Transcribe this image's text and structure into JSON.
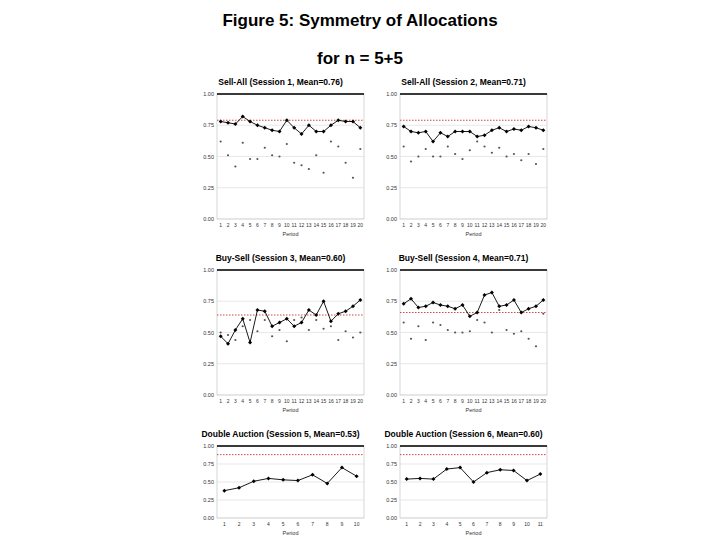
{
  "page": {
    "title": "Figure 5: Symmetry of Allocations",
    "subtitle": "for n = 5+5"
  },
  "chart_data": [
    {
      "type": "line",
      "title": "Sell-All (Session 1, Mean=0.76)",
      "x_label": "Period",
      "categories": [
        "1",
        "2",
        "3",
        "4",
        "5",
        "6",
        "7",
        "8",
        "9",
        "10",
        "11",
        "12",
        "13",
        "14",
        "15",
        "16",
        "17",
        "18",
        "19",
        "20"
      ],
      "ylim": [
        0,
        1
      ],
      "yticks": [
        {
          "value": 0,
          "label": "0.00"
        },
        {
          "value": 0.25,
          "label": "0.25"
        },
        {
          "value": 0.5,
          "label": "0.50"
        },
        {
          "value": 0.75,
          "label": "0.75"
        },
        {
          "value": 1,
          "label": "1.00"
        }
      ],
      "grid": true,
      "hlines": [
        {
          "value": 1,
          "color": "#000000",
          "line_style": "solid"
        },
        {
          "value": 0.79,
          "color": "#cc3333",
          "line_style": "dotted"
        }
      ],
      "series": [
        {
          "color": "#000000",
          "marker": "diamond",
          "line_style": "solid",
          "values": [
            0.78,
            0.77,
            0.76,
            0.82,
            0.78,
            0.75,
            0.73,
            0.71,
            0.7,
            0.79,
            0.73,
            0.68,
            0.75,
            0.7,
            0.7,
            0.75,
            0.79,
            0.78,
            0.78,
            0.73
          ]
        },
        {
          "color": "#555555",
          "marker": "circle",
          "line_style": "none",
          "values": [
            0.62,
            0.51,
            0.42,
            0.61,
            0.48,
            0.48,
            0.57,
            0.51,
            0.5,
            0.6,
            0.45,
            0.43,
            0.4,
            0.51,
            0.37,
            0.62,
            0.58,
            0.45,
            0.33,
            0.56
          ]
        }
      ]
    },
    {
      "type": "line",
      "title": "Sell-All (Session 2, Mean=0.71)",
      "x_label": "Period",
      "categories": [
        "1",
        "2",
        "3",
        "4",
        "5",
        "6",
        "7",
        "8",
        "9",
        "10",
        "11",
        "12",
        "13",
        "14",
        "15",
        "16",
        "17",
        "18",
        "19",
        "20"
      ],
      "ylim": [
        0,
        1
      ],
      "yticks": [
        {
          "value": 0,
          "label": "0.00"
        },
        {
          "value": 0.25,
          "label": "0.25"
        },
        {
          "value": 0.5,
          "label": "0.50"
        },
        {
          "value": 0.75,
          "label": "0.75"
        },
        {
          "value": 1,
          "label": "1.00"
        }
      ],
      "grid": true,
      "hlines": [
        {
          "value": 1,
          "color": "#000000",
          "line_style": "solid"
        },
        {
          "value": 0.79,
          "color": "#cc3333",
          "line_style": "dotted"
        }
      ],
      "series": [
        {
          "color": "#000000",
          "marker": "diamond",
          "line_style": "solid",
          "values": [
            0.74,
            0.7,
            0.69,
            0.7,
            0.62,
            0.69,
            0.66,
            0.7,
            0.7,
            0.7,
            0.66,
            0.67,
            0.71,
            0.73,
            0.7,
            0.72,
            0.71,
            0.74,
            0.73,
            0.71
          ]
        },
        {
          "color": "#555555",
          "marker": "circle",
          "line_style": "none",
          "values": [
            0.58,
            0.46,
            0.5,
            0.56,
            0.5,
            0.5,
            0.58,
            0.52,
            0.48,
            0.55,
            0.62,
            0.58,
            0.53,
            0.57,
            0.5,
            0.52,
            0.47,
            0.52,
            0.44,
            0.56
          ]
        }
      ]
    },
    {
      "type": "line",
      "title": "Buy-Sell (Session 3, Mean=0.60)",
      "x_label": "Period",
      "categories": [
        "1",
        "2",
        "3",
        "4",
        "5",
        "6",
        "7",
        "8",
        "9",
        "10",
        "11",
        "12",
        "13",
        "14",
        "15",
        "16",
        "17",
        "18",
        "19",
        "20"
      ],
      "ylim": [
        0,
        1
      ],
      "yticks": [
        {
          "value": 0,
          "label": "0.00"
        },
        {
          "value": 0.25,
          "label": "0.25"
        },
        {
          "value": 0.5,
          "label": "0.50"
        },
        {
          "value": 0.75,
          "label": "0.75"
        },
        {
          "value": 1,
          "label": "1.00"
        }
      ],
      "grid": true,
      "hlines": [
        {
          "value": 1,
          "color": "#000000",
          "line_style": "solid"
        },
        {
          "value": 0.64,
          "color": "#cc3333",
          "line_style": "dotted"
        }
      ],
      "series": [
        {
          "color": "#000000",
          "marker": "diamond",
          "line_style": "solid",
          "values": [
            0.47,
            0.41,
            0.52,
            0.61,
            0.42,
            0.68,
            0.67,
            0.55,
            0.58,
            0.61,
            0.55,
            0.58,
            0.68,
            0.64,
            0.75,
            0.59,
            0.65,
            0.67,
            0.71,
            0.76
          ]
        },
        {
          "color": "#555555",
          "marker": "circle",
          "line_style": "none",
          "values": [
            0.5,
            0.48,
            0.44,
            0.55,
            0.6,
            0.51,
            0.6,
            0.47,
            0.52,
            0.43,
            0.6,
            0.62,
            0.52,
            0.6,
            0.53,
            0.55,
            0.44,
            0.51,
            0.46,
            0.5
          ]
        }
      ]
    },
    {
      "type": "line",
      "title": "Buy-Sell (Session 4, Mean=0.71)",
      "x_label": "Period",
      "categories": [
        "1",
        "2",
        "3",
        "4",
        "5",
        "6",
        "7",
        "8",
        "9",
        "10",
        "11",
        "12",
        "13",
        "14",
        "15",
        "16",
        "17",
        "18",
        "19",
        "20"
      ],
      "ylim": [
        0,
        1
      ],
      "yticks": [
        {
          "value": 0,
          "label": "0.00"
        },
        {
          "value": 0.25,
          "label": "0.25"
        },
        {
          "value": 0.5,
          "label": "0.50"
        },
        {
          "value": 0.75,
          "label": "0.75"
        },
        {
          "value": 1,
          "label": "1.00"
        }
      ],
      "grid": true,
      "hlines": [
        {
          "value": 1,
          "color": "#000000",
          "line_style": "solid"
        },
        {
          "value": 0.66,
          "color": "#cc3333",
          "line_style": "dotted"
        }
      ],
      "series": [
        {
          "color": "#000000",
          "marker": "diamond",
          "line_style": "solid",
          "values": [
            0.73,
            0.77,
            0.7,
            0.71,
            0.74,
            0.72,
            0.71,
            0.69,
            0.72,
            0.63,
            0.66,
            0.8,
            0.82,
            0.71,
            0.72,
            0.76,
            0.66,
            0.69,
            0.71,
            0.76
          ]
        },
        {
          "color": "#555555",
          "marker": "circle",
          "line_style": "none",
          "values": [
            0.58,
            0.45,
            0.55,
            0.44,
            0.58,
            0.56,
            0.52,
            0.5,
            0.5,
            0.51,
            0.6,
            0.58,
            0.5,
            0.68,
            0.52,
            0.49,
            0.51,
            0.45,
            0.39,
            0.65
          ]
        }
      ]
    },
    {
      "type": "line",
      "title": "Double Auction (Session 5, Mean=0.53)",
      "x_label": "Period",
      "categories": [
        "1",
        "2",
        "3",
        "4",
        "5",
        "6",
        "7",
        "8",
        "9",
        "10"
      ],
      "ylim": [
        0,
        1
      ],
      "yticks": [
        {
          "value": 0,
          "label": "0.00"
        },
        {
          "value": 0.25,
          "label": "0.25"
        },
        {
          "value": 0.5,
          "label": "0.50"
        },
        {
          "value": 0.75,
          "label": "0.75"
        },
        {
          "value": 1,
          "label": "1.00"
        }
      ],
      "grid": true,
      "hlines": [
        {
          "value": 1,
          "color": "#000000",
          "line_style": "solid"
        },
        {
          "value": 0.88,
          "color": "#cc3333",
          "line_style": "dotted"
        }
      ],
      "series": [
        {
          "color": "#000000",
          "marker": "diamond",
          "line_style": "solid",
          "values": [
            0.38,
            0.42,
            0.51,
            0.55,
            0.53,
            0.52,
            0.6,
            0.48,
            0.7,
            0.58
          ]
        }
      ]
    },
    {
      "type": "line",
      "title": "Double Auction (Session 6, Mean=0.60)",
      "x_label": "Period",
      "categories": [
        "1",
        "2",
        "3",
        "4",
        "5",
        "6",
        "7",
        "8",
        "9",
        "10",
        "11"
      ],
      "ylim": [
        0,
        1
      ],
      "yticks": [
        {
          "value": 0,
          "label": "0.00"
        },
        {
          "value": 0.25,
          "label": "0.25"
        },
        {
          "value": 0.5,
          "label": "0.50"
        },
        {
          "value": 0.75,
          "label": "0.75"
        },
        {
          "value": 1,
          "label": "1.00"
        }
      ],
      "grid": true,
      "hlines": [
        {
          "value": 1,
          "color": "#000000",
          "line_style": "solid"
        },
        {
          "value": 0.88,
          "color": "#cc3333",
          "line_style": "dotted"
        }
      ],
      "series": [
        {
          "color": "#000000",
          "marker": "diamond",
          "line_style": "solid",
          "values": [
            0.54,
            0.55,
            0.54,
            0.68,
            0.7,
            0.5,
            0.63,
            0.67,
            0.66,
            0.52,
            0.61
          ]
        }
      ]
    }
  ]
}
